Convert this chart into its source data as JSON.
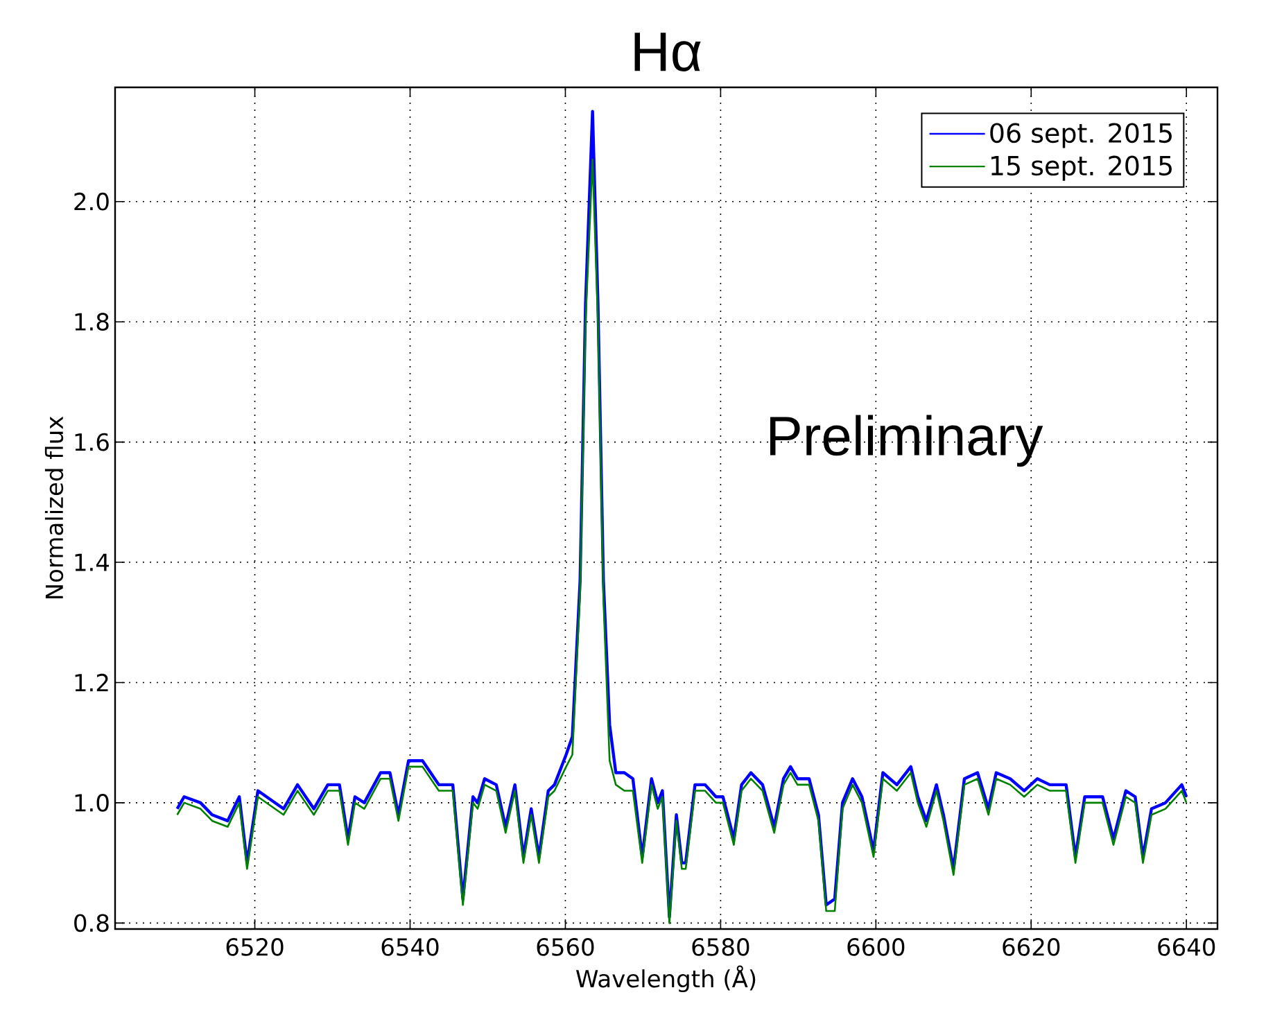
{
  "chart_data": {
    "type": "line",
    "title": "Hα",
    "xlabel": "Wavelength (Å)",
    "ylabel": "Normalized flux",
    "annotations": [
      "Preliminary"
    ],
    "xlim": [
      6502,
      6644
    ],
    "ylim": [
      0.79,
      2.19
    ],
    "xticks": [
      6520,
      6540,
      6560,
      6580,
      6600,
      6620,
      6640
    ],
    "yticks": [
      0.8,
      {
        "value": 1.0,
        "label": "1.0"
      },
      1.2,
      1.4,
      1.6,
      1.8,
      {
        "value": 2.0,
        "label": "2.0"
      }
    ],
    "grid": true,
    "legend": "top right",
    "line_style": "solid",
    "x": [
      6510,
      6510.9,
      6513,
      6514.5,
      6516.5,
      6518,
      6519,
      6520.4,
      6523.7,
      6525.5,
      6527.6,
      6529.4,
      6530.9,
      6532,
      6532.9,
      6534.1,
      6536.2,
      6537.4,
      6538.5,
      6539.8,
      6541.6,
      6543.7,
      6545.5,
      6546.8,
      6548.1,
      6548.7,
      6549.6,
      6551.1,
      6552.3,
      6553.5,
      6554.6,
      6555.6,
      6556.6,
      6557.8,
      6558.6,
      6560.1,
      6560.9,
      6561.9,
      6562.6,
      6563.5,
      6564.2,
      6564.9,
      6565.7,
      6566.5,
      6567.6,
      6568.7,
      6569.9,
      6571.1,
      6571.9,
      6572.5,
      6573.4,
      6574.3,
      6575.0,
      6575.5,
      6576.7,
      6578.0,
      6579.4,
      6580.3,
      6581.7,
      6582.7,
      6583.9,
      6585.4,
      6586.9,
      6588.1,
      6589.0,
      6589.9,
      6591.4,
      6592.6,
      6593.6,
      6594.7,
      6595.7,
      6597.0,
      6598.2,
      6599.7,
      6600.9,
      6602.7,
      6604.5,
      6605.4,
      6606.5,
      6607.8,
      6608.7,
      6610.0,
      6611.4,
      6613.1,
      6614.5,
      6615.5,
      6617.3,
      6619.1,
      6620.8,
      6622.4,
      6624.5,
      6625.7,
      6626.9,
      6627.7,
      6629.2,
      6630.6,
      6632.2,
      6633.4,
      6634.4,
      6635.5,
      6637.3,
      6639.4,
      6640.0
    ],
    "series": [
      {
        "name": "06 sept. 2015",
        "color": "#0000ff",
        "values": [
          0.99,
          1.01,
          1.0,
          0.98,
          0.97,
          1.01,
          0.9,
          1.02,
          0.99,
          1.03,
          0.99,
          1.03,
          1.03,
          0.94,
          1.01,
          1.0,
          1.05,
          1.05,
          0.98,
          1.07,
          1.07,
          1.03,
          1.03,
          0.84,
          1.01,
          1.0,
          1.04,
          1.03,
          0.96,
          1.03,
          0.91,
          0.99,
          0.91,
          1.02,
          1.03,
          1.08,
          1.11,
          1.37,
          1.83,
          2.15,
          1.83,
          1.37,
          1.13,
          1.05,
          1.05,
          1.04,
          0.91,
          1.04,
          1.0,
          1.02,
          0.81,
          0.98,
          0.9,
          0.9,
          1.03,
          1.03,
          1.01,
          1.01,
          0.94,
          1.03,
          1.05,
          1.03,
          0.96,
          1.04,
          1.06,
          1.04,
          1.04,
          0.98,
          0.83,
          0.84,
          1.0,
          1.04,
          1.01,
          0.92,
          1.05,
          1.03,
          1.06,
          1.01,
          0.97,
          1.03,
          0.98,
          0.89,
          1.04,
          1.05,
          0.99,
          1.05,
          1.04,
          1.02,
          1.04,
          1.03,
          1.03,
          0.91,
          1.01,
          1.01,
          1.01,
          0.94,
          1.02,
          1.01,
          0.91,
          0.99,
          1.0,
          1.03,
          1.01
        ]
      },
      {
        "name": "15 sept. 2015",
        "color": "#008000",
        "values": [
          0.98,
          1.0,
          0.99,
          0.97,
          0.96,
          1.0,
          0.89,
          1.01,
          0.98,
          1.02,
          0.98,
          1.02,
          1.02,
          0.93,
          1.0,
          0.99,
          1.04,
          1.04,
          0.97,
          1.06,
          1.06,
          1.02,
          1.02,
          0.83,
          1.0,
          0.99,
          1.03,
          1.02,
          0.95,
          1.02,
          0.9,
          0.98,
          0.9,
          1.01,
          1.02,
          1.06,
          1.08,
          1.35,
          1.8,
          2.07,
          1.8,
          1.34,
          1.07,
          1.03,
          1.02,
          1.02,
          0.9,
          1.03,
          0.99,
          1.01,
          0.8,
          0.97,
          0.89,
          0.89,
          1.02,
          1.02,
          1.0,
          1.0,
          0.93,
          1.02,
          1.04,
          1.02,
          0.95,
          1.03,
          1.05,
          1.03,
          1.03,
          0.97,
          0.82,
          0.82,
          0.99,
          1.03,
          1.0,
          0.91,
          1.04,
          1.02,
          1.05,
          1.0,
          0.96,
          1.02,
          0.97,
          0.88,
          1.03,
          1.04,
          0.98,
          1.04,
          1.03,
          1.01,
          1.03,
          1.02,
          1.02,
          0.9,
          1.0,
          1.0,
          1.0,
          0.93,
          1.01,
          1.0,
          0.9,
          0.98,
          0.99,
          1.02,
          1.0
        ]
      }
    ]
  }
}
